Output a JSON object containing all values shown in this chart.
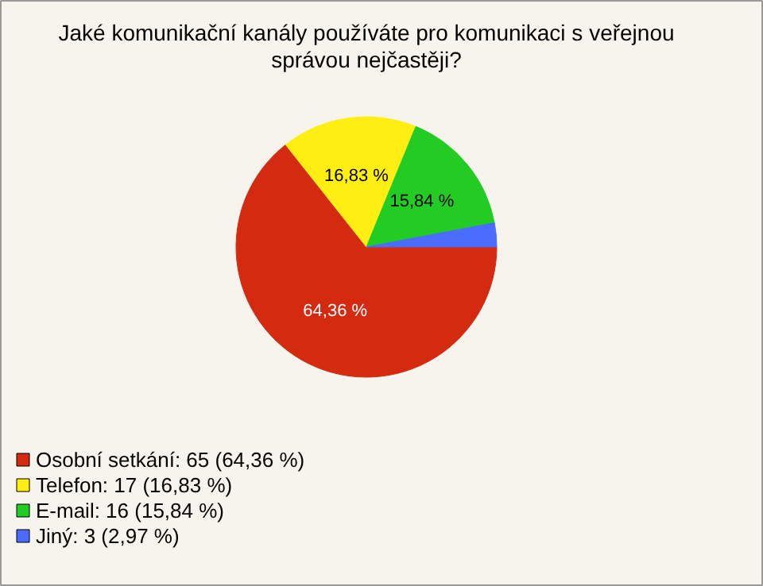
{
  "chart_data": {
    "type": "pie",
    "title": "Jaké komunikační kanály používáte pro komunikaci s veřejnou správou nejčastěji?",
    "categories": [
      "Osobní setkání: 65 (64,36 %)",
      "Telefon: 17 (16,83 %)",
      "E-mail: 16 (15,84 %)",
      "Jiný: 3 (2,97 %)"
    ],
    "values": [
      64.36,
      16.83,
      15.84,
      2.97
    ],
    "colors": [
      "#d42a10",
      "#ffee11",
      "#22cc22",
      "#4a6cff"
    ],
    "value_labels": [
      "64,36 %",
      "16,83 %",
      "15,84 %",
      null
    ],
    "legend": "bottom left"
  }
}
